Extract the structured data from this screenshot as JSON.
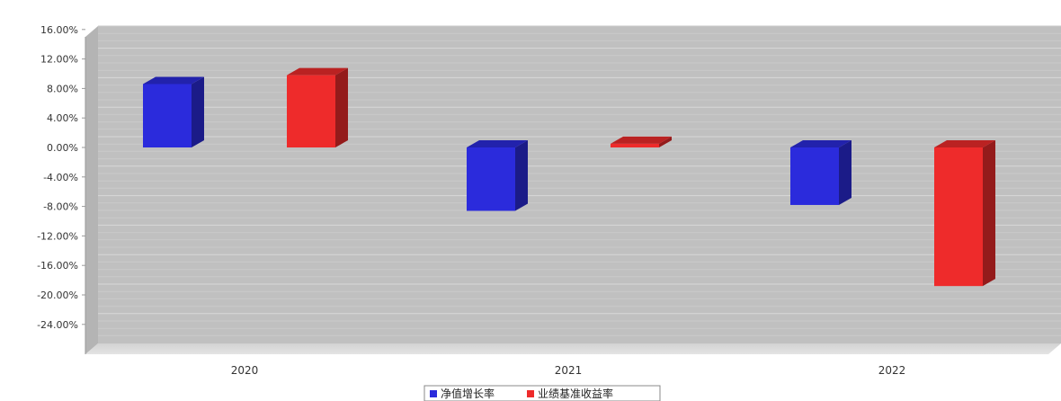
{
  "chart_data": {
    "type": "bar",
    "categories": [
      "2020",
      "2021",
      "2022"
    ],
    "series": [
      {
        "name": "净值增长率",
        "color": "#2b2bdc",
        "values": [
          8.6,
          -8.6,
          -7.8
        ]
      },
      {
        "name": "业绩基准收益率",
        "color": "#ee2b2b",
        "values": [
          9.8,
          0.5,
          -18.8
        ]
      }
    ],
    "yticks": [
      16,
      12,
      8,
      4,
      0,
      -4,
      -8,
      -12,
      -16,
      -20,
      -24
    ],
    "ytick_labels": [
      "16.00%",
      "12.00%",
      "8.00%",
      "4.00%",
      "0.00%",
      "-4.00%",
      "-8.00%",
      "-12.00%",
      "-16.00%",
      "-20.00%",
      "-24.00%"
    ],
    "ylim": [
      -27,
      17
    ],
    "grid": true,
    "three_d": true,
    "legend_position": "bottom-center",
    "plot_background": "#c0c0c0"
  }
}
